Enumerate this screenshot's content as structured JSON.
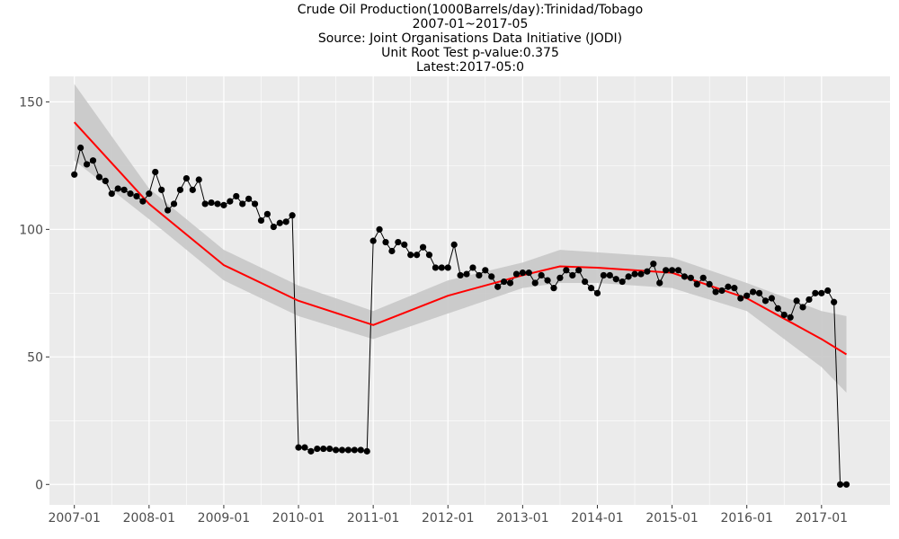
{
  "title_lines": [
    "Crude Oil Production(1000Barrels/day):Trinidad/Tobago",
    "2007-01~2017-05",
    "Source: Joint Organisations Data Initiative (JODI)",
    "Unit Root Test p-value:0.375",
    "Latest:2017-05:0"
  ],
  "colors": {
    "panel_background": "#ebebeb",
    "grid": "#ffffff",
    "points": "#000000",
    "line": "#000000",
    "smooth": "#ff0000",
    "ribbon": "#c8c8c8",
    "tick_text": "#4d4d4d"
  },
  "chart_data": {
    "type": "line",
    "title": "Crude Oil Production(1000Barrels/day):Trinidad/Tobago",
    "xlabel": "",
    "ylabel": "",
    "x_start": "2007-01",
    "x_end": "2017-05",
    "xlim": [
      "2006-09",
      "2017-12"
    ],
    "ylim": [
      -8,
      160
    ],
    "x_tick_labels": [
      "2007-01",
      "2008-01",
      "2009-01",
      "2010-01",
      "2011-01",
      "2012-01",
      "2013-01",
      "2014-01",
      "2015-01",
      "2016-01",
      "2017-01"
    ],
    "y_ticks": [
      0,
      50,
      100,
      150
    ],
    "grid": true,
    "series": [
      {
        "values": [
          121.5,
          132,
          125.5,
          127,
          120.5,
          119,
          114,
          116,
          115.5,
          114,
          113,
          111,
          114,
          122.5,
          115.5,
          107.5,
          110,
          115.5,
          120,
          115.5,
          119.5,
          110,
          110.5,
          110,
          109.5,
          111,
          113,
          110,
          112,
          110,
          103.5,
          106,
          101,
          102.5,
          103,
          105.5,
          14.5,
          14.5,
          13,
          14,
          14,
          14,
          13.5,
          13.5,
          13.5,
          13.5,
          13.5,
          13,
          95.5,
          100,
          95,
          91.5,
          95,
          94,
          90,
          90,
          93,
          90,
          85,
          85,
          85,
          94,
          82,
          82.5,
          85,
          82,
          84,
          81.5,
          77.5,
          79.5,
          79,
          82.5,
          83,
          83,
          79,
          82,
          80,
          77,
          81,
          84,
          82,
          84,
          79.5,
          77,
          75,
          82,
          82,
          80.5,
          79.5,
          81.5,
          82.5,
          82.5,
          83.5,
          86.5,
          79,
          84,
          84,
          84,
          81.5,
          81,
          78.5,
          81,
          78.5,
          75.5,
          76,
          77.5,
          77,
          73,
          74,
          75.5,
          75,
          72,
          73,
          69,
          66.5,
          65.5,
          72,
          69.5,
          72.5,
          75,
          75,
          76,
          71.5,
          0,
          0
        ]
      }
    ],
    "smooth_fit": {
      "x": [
        "2007-01",
        "2008-01",
        "2009-01",
        "2010-01",
        "2011-01",
        "2012-01",
        "2013-01",
        "2013-07",
        "2014-01",
        "2015-01",
        "2016-01",
        "2017-01",
        "2017-05"
      ],
      "y": [
        142,
        110,
        86,
        72,
        62.5,
        74,
        82,
        85.5,
        85,
        83,
        73,
        57,
        51
      ],
      "lower": [
        127,
        104,
        80,
        66,
        57,
        67,
        77,
        79,
        79,
        77,
        68,
        46,
        36
      ],
      "upper": [
        157,
        116,
        92,
        78,
        68,
        80,
        87,
        92,
        91,
        89,
        79,
        68,
        66
      ]
    }
  }
}
